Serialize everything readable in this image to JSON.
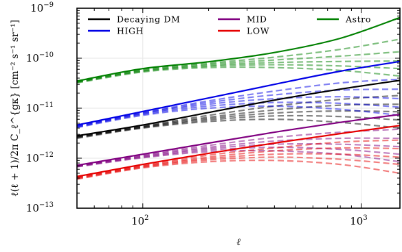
{
  "chart_data": {
    "type": "line",
    "xscale": "log",
    "yscale": "log",
    "xlim": [
      50,
      1500
    ],
    "ylim": [
      1e-13,
      1e-09
    ],
    "xlabel": "ℓ",
    "ylabel": "ℓ(ℓ + 1)/2π C_ℓ^{gκ} [cm⁻² s⁻¹ sr⁻¹]",
    "legend_position": "top",
    "x_ticks": [
      {
        "value": 100,
        "base": "10",
        "exp": "2"
      },
      {
        "value": 1000,
        "base": "10",
        "exp": "3"
      }
    ],
    "y_ticks": [
      {
        "value": 1e-13,
        "base": "10",
        "exp": "−13"
      },
      {
        "value": 1e-12,
        "base": "10",
        "exp": "−12"
      },
      {
        "value": 1e-11,
        "base": "10",
        "exp": "−11"
      },
      {
        "value": 1e-10,
        "base": "10",
        "exp": "−10"
      },
      {
        "value": 1e-09,
        "base": "10",
        "exp": "−9"
      }
    ],
    "x": [
      50,
      100,
      200,
      400,
      800,
      1500
    ],
    "series": [
      {
        "name": "Decaying DM",
        "color": "#000000",
        "values": [
          2.8e-12,
          4.6e-12,
          8.2e-12,
          1.45e-11,
          2.4e-11,
          3.6e-11
        ],
        "dashed": [
          [
            2.7e-12,
            4.4e-12,
            7.2e-12,
            1.1e-11,
            1.5e-11,
            1.8e-11
          ],
          [
            2.7e-12,
            4.3e-12,
            6.6e-12,
            9.2e-12,
            1.15e-11,
            1.2e-11
          ],
          [
            2.6e-12,
            4.2e-12,
            6.2e-12,
            8e-12,
            8.8e-12,
            8.5e-12
          ],
          [
            2.6e-12,
            4.1e-12,
            5.8e-12,
            7e-12,
            6.8e-12,
            5.8e-12
          ],
          [
            2.5e-12,
            4e-12,
            5.4e-12,
            6e-12,
            5.2e-12,
            4e-12
          ]
        ]
      },
      {
        "name": "HIGH",
        "color": "#0000e6",
        "values": [
          4.6e-12,
          8.6e-12,
          1.6e-11,
          3e-11,
          5.5e-11,
          8.6e-11
        ],
        "dashed": [
          [
            4.5e-12,
            8.2e-12,
            1.4e-11,
            2.2e-11,
            3.2e-11,
            3.8e-11
          ],
          [
            4.4e-12,
            8e-12,
            1.3e-11,
            1.85e-11,
            2.3e-11,
            2.4e-11
          ],
          [
            4.3e-12,
            7.8e-12,
            1.2e-11,
            1.55e-11,
            1.7e-11,
            1.55e-11
          ],
          [
            4.2e-12,
            7.5e-12,
            1.1e-11,
            1.3e-11,
            1.25e-11,
            1.05e-11
          ],
          [
            4.1e-12,
            7.2e-12,
            1e-11,
            1.1e-11,
            9.5e-12,
            7.2e-12
          ]
        ]
      },
      {
        "name": "MID",
        "color": "#800080",
        "values": [
          7.2e-13,
          1.2e-12,
          2e-12,
          3.3e-12,
          5.2e-12,
          7.5e-12
        ],
        "dashed": [
          [
            7.1e-13,
            1.15e-12,
            1.8e-12,
            2.6e-12,
            3.3e-12,
            3.8e-12
          ],
          [
            7e-13,
            1.12e-12,
            1.65e-12,
            2.2e-12,
            2.5e-12,
            2.5e-12
          ],
          [
            6.9e-13,
            1.08e-12,
            1.55e-12,
            1.9e-12,
            1.9e-12,
            1.7e-12
          ],
          [
            6.8e-13,
            1.05e-12,
            1.45e-12,
            1.65e-12,
            1.5e-12,
            1.2e-12
          ],
          [
            6.7e-13,
            1.02e-12,
            1.35e-12,
            1.4e-12,
            1.2e-12,
            8.5e-13
          ]
        ]
      },
      {
        "name": "LOW",
        "color": "#e60000",
        "values": [
          4.3e-13,
          7.5e-13,
          1.25e-12,
          2e-12,
          3.1e-12,
          4.5e-12
        ],
        "dashed": [
          [
            4.2e-13,
            7.2e-13,
            1.15e-12,
            1.6e-12,
            2.1e-12,
            2.3e-12
          ],
          [
            4.1e-13,
            7e-13,
            1.05e-12,
            1.4e-12,
            1.6e-12,
            1.55e-12
          ],
          [
            4e-13,
            6.8e-13,
            9.8e-13,
            1.2e-12,
            1.2e-12,
            1.05e-12
          ],
          [
            3.9e-13,
            6.6e-13,
            9.2e-13,
            1.05e-12,
            9.5e-13,
            7.5e-13
          ],
          [
            3.8e-13,
            6.4e-13,
            8.5e-13,
            9e-13,
            7.5e-13,
            5e-13
          ]
        ]
      },
      {
        "name": "Astro",
        "color": "#008000",
        "values": [
          3.5e-11,
          6.2e-11,
          8.5e-11,
          1.3e-10,
          2.5e-10,
          6.5e-10
        ],
        "dashed": [
          [
            3.4e-11,
            6e-11,
            8e-11,
            1.05e-10,
            1.5e-10,
            2.4e-10
          ],
          [
            3.4e-11,
            5.8e-11,
            7.6e-11,
            9.2e-11,
            1.1e-10,
            1.35e-10
          ],
          [
            3.3e-11,
            5.6e-11,
            7.2e-11,
            8.2e-11,
            8.6e-11,
            8.8e-11
          ],
          [
            3.3e-11,
            5.5e-11,
            6.9e-11,
            7.4e-11,
            7e-11,
            6.2e-11
          ],
          [
            3.2e-11,
            5.3e-11,
            6.5e-11,
            6.5e-11,
            5.7e-11,
            4.4e-11
          ]
        ]
      }
    ]
  }
}
